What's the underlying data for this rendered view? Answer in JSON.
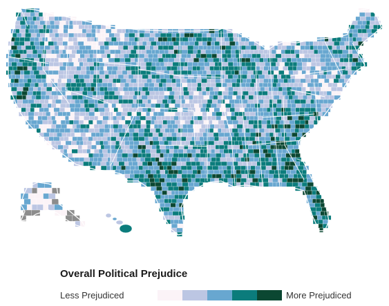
{
  "legend": {
    "title": "Overall Political Prejudice",
    "low_label": "Less Prejudiced",
    "high_label": "More Prejudiced",
    "scale": [
      "#fbf3f7",
      "#bcc6e3",
      "#68a7d0",
      "#0b7c7c",
      "#0b4732"
    ]
  },
  "map": {
    "background": "#ffffff",
    "state_border": "#ffffff",
    "no_data": "#8c8c8c"
  }
}
